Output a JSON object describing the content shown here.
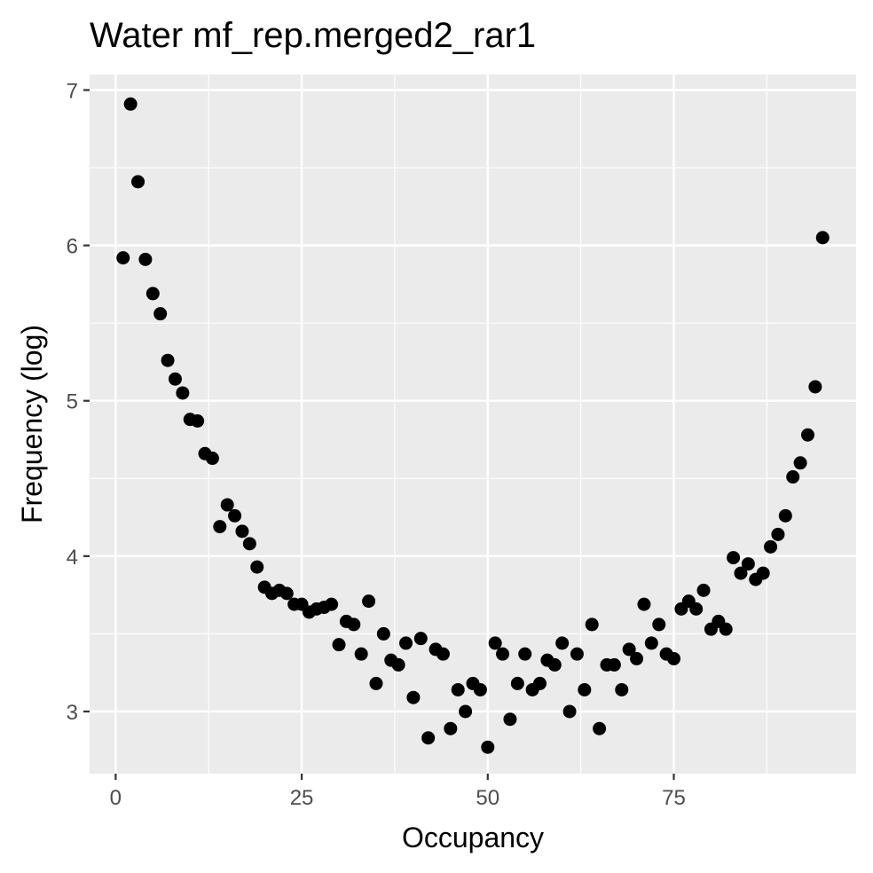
{
  "chart_data": {
    "type": "scatter",
    "title": "Water mf_rep.merged2_rar1",
    "xlabel": "Occupancy",
    "ylabel": "Frequency (log)",
    "xlim": [
      -3.5,
      99.5
    ],
    "ylim": [
      2.6,
      7.1
    ],
    "x_ticks": [
      0,
      25,
      50,
      75
    ],
    "x_tick_labels": [
      "0",
      "25",
      "50",
      "75"
    ],
    "y_ticks": [
      3,
      4,
      5,
      6,
      7
    ],
    "y_tick_labels": [
      "3",
      "4",
      "5",
      "6",
      "7"
    ],
    "grid": true,
    "legend": "none",
    "colors": {
      "panel": "#ebebeb",
      "grid": "#ffffff",
      "point": "#000000",
      "tick": "#333333"
    },
    "x": [
      1,
      2,
      3,
      4,
      5,
      6,
      7,
      8,
      9,
      10,
      11,
      12,
      13,
      14,
      15,
      16,
      17,
      18,
      19,
      20,
      21,
      22,
      23,
      24,
      25,
      26,
      27,
      28,
      29,
      30,
      31,
      32,
      33,
      34,
      35,
      36,
      37,
      38,
      39,
      40,
      41,
      42,
      43,
      44,
      45,
      46,
      47,
      48,
      49,
      50,
      51,
      52,
      53,
      54,
      55,
      56,
      57,
      58,
      59,
      60,
      61,
      62,
      63,
      64,
      65,
      66,
      67,
      68,
      69,
      70,
      71,
      72,
      73,
      74,
      75,
      76,
      77,
      78,
      79,
      80,
      81,
      82,
      83,
      84,
      85,
      86,
      87,
      88,
      89,
      90,
      91,
      92,
      93,
      94,
      95
    ],
    "y": [
      5.92,
      6.91,
      6.41,
      5.91,
      5.69,
      5.56,
      5.26,
      5.14,
      5.05,
      4.88,
      4.87,
      4.66,
      4.63,
      4.19,
      4.33,
      4.26,
      4.16,
      4.08,
      3.93,
      3.8,
      3.76,
      3.78,
      3.76,
      3.69,
      3.69,
      3.64,
      3.66,
      3.67,
      3.69,
      3.43,
      3.58,
      3.56,
      3.37,
      3.71,
      3.18,
      3.5,
      3.33,
      3.3,
      3.44,
      3.09,
      3.47,
      2.83,
      3.4,
      3.37,
      2.89,
      3.14,
      3.0,
      3.18,
      3.14,
      2.77,
      3.44,
      3.37,
      2.95,
      3.18,
      3.37,
      3.14,
      3.18,
      3.33,
      3.3,
      3.44,
      3.0,
      3.37,
      3.14,
      3.56,
      2.89,
      3.3,
      3.3,
      3.14,
      3.4,
      3.34,
      3.69,
      3.44,
      3.56,
      3.37,
      3.34,
      3.66,
      3.71,
      3.66,
      3.78,
      3.53,
      3.58,
      3.53,
      3.99,
      3.89,
      3.95,
      3.85,
      3.89,
      4.06,
      4.14,
      4.26,
      4.51,
      4.6,
      4.78,
      5.09,
      6.05
    ]
  }
}
